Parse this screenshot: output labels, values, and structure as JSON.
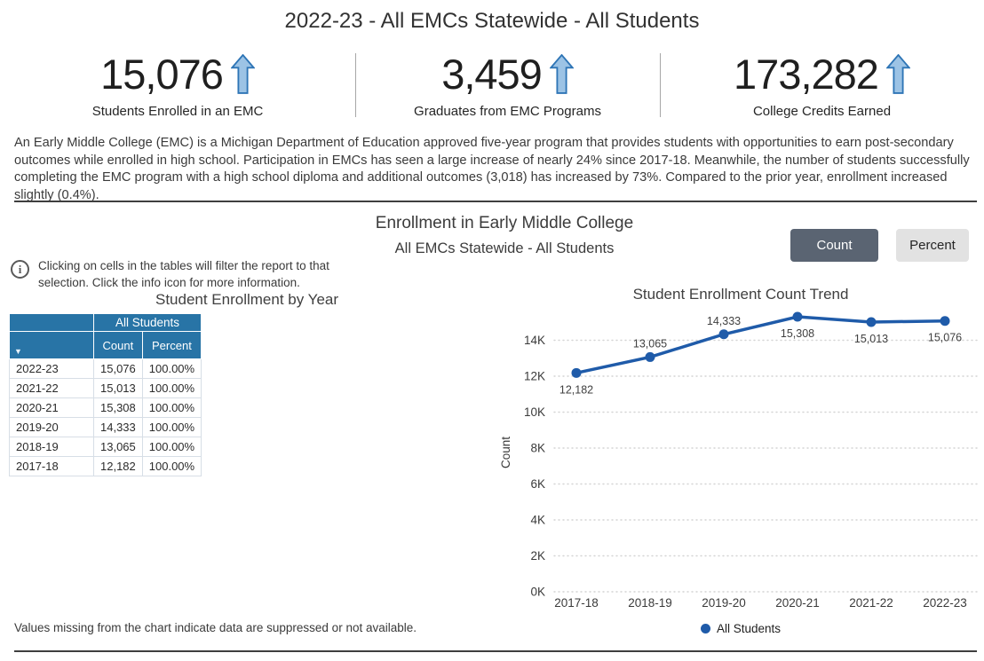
{
  "header": {
    "title": "2022-23 - All EMCs Statewide - All Students"
  },
  "kpis": [
    {
      "value": "15,076",
      "label": "Students Enrolled in an EMC",
      "trend": "up"
    },
    {
      "value": "3,459",
      "label": "Graduates from EMC Programs",
      "trend": "up"
    },
    {
      "value": "173,282",
      "label": "College Credits Earned",
      "trend": "up"
    }
  ],
  "description": "An Early Middle College (EMC) is a Michigan Department of Education approved five-year program that provides students with opportunities to earn post-secondary outcomes while enrolled in high school. Participation in EMCs has seen a large increase of nearly 24% since 2017-18. Meanwhile, the number of students successfully completing the EMC program with a high school diploma and additional outcomes (3,018) has increased by 73%. Compared to the prior year, enrollment increased slightly (0.4%).",
  "section": {
    "title": "Enrollment in Early Middle College",
    "subtitle": "All EMCs Statewide - All Students",
    "count_button": "Count",
    "percent_button": "Percent"
  },
  "info_note": "Clicking on cells in the tables will filter the report to that selection. Click the info icon for more information.",
  "table": {
    "title": "Student Enrollment by Year",
    "group_header": "All Students",
    "columns": [
      "Count",
      "Percent"
    ],
    "rows": [
      {
        "year": "2022-23",
        "count": "15,076",
        "percent": "100.00%"
      },
      {
        "year": "2021-22",
        "count": "15,013",
        "percent": "100.00%"
      },
      {
        "year": "2020-21",
        "count": "15,308",
        "percent": "100.00%"
      },
      {
        "year": "2019-20",
        "count": "14,333",
        "percent": "100.00%"
      },
      {
        "year": "2018-19",
        "count": "13,065",
        "percent": "100.00%"
      },
      {
        "year": "2017-18",
        "count": "12,182",
        "percent": "100.00%"
      }
    ]
  },
  "chart_data": {
    "type": "line",
    "title": "Student Enrollment Count Trend",
    "categories": [
      "2017-18",
      "2018-19",
      "2019-20",
      "2020-21",
      "2021-22",
      "2022-23"
    ],
    "series": [
      {
        "name": "All Students",
        "values": [
          12182,
          13065,
          14333,
          15308,
          15013,
          15076
        ]
      }
    ],
    "labels": [
      "12,182",
      "13,065",
      "14,333",
      "15,308",
      "15,013",
      "15,076"
    ],
    "label_pos": [
      "below",
      "above",
      "above",
      "below",
      "below",
      "below"
    ],
    "xlabel": "",
    "ylabel": "Count",
    "ylim": [
      0,
      16000
    ],
    "yticks": [
      "0K",
      "2K",
      "4K",
      "6K",
      "8K",
      "10K",
      "12K",
      "14K"
    ],
    "grid": "dotted horizontal",
    "legend": "All Students",
    "legend_position": "bottom",
    "line_color": "#1f5ba9"
  },
  "footer": {
    "note": "Values missing from the chart indicate data are suppressed or not available."
  },
  "colors": {
    "table_header_blue": "#2874a6",
    "line_blue": "#1f5ba9",
    "arrow_fill": "#9cc3e5",
    "arrow_stroke": "#2e75b6",
    "button_active_bg": "#5a6472",
    "button_inactive_bg": "#e2e2e2"
  }
}
